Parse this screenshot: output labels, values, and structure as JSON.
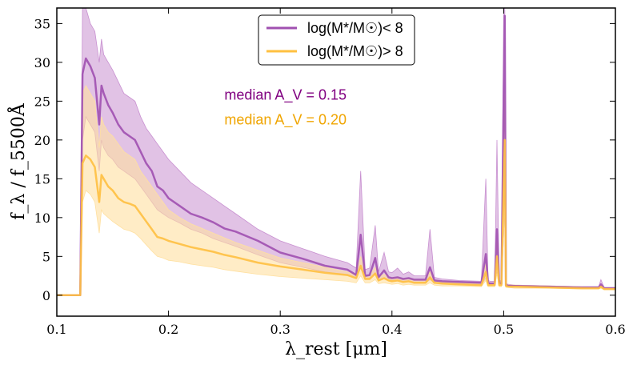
{
  "chart_data": {
    "type": "line",
    "xlabel": "λ_rest [μm]",
    "ylabel": "f_λ / f_5500Å",
    "xlim": [
      0.1,
      0.6
    ],
    "ylim": [
      -2.7,
      37
    ],
    "xticks": [
      0.1,
      0.2,
      0.3,
      0.4,
      0.5,
      0.6
    ],
    "xtick_labels": [
      "0.1",
      "0.2",
      "0.3",
      "0.4",
      "0.5",
      "0.6"
    ],
    "yticks": [
      0,
      5,
      10,
      15,
      20,
      25,
      30,
      35
    ],
    "ytick_labels": [
      "0",
      "5",
      "10",
      "15",
      "20",
      "25",
      "30",
      "35"
    ],
    "grid": false,
    "legend_position": "top-center",
    "annotations": [
      {
        "text": "median A_V = 0.15",
        "x": 0.25,
        "y": 25.2,
        "color": "#800080"
      },
      {
        "text": "median A_V = 0.20",
        "x": 0.25,
        "y": 22.0,
        "color": "#f0a500"
      }
    ],
    "series": [
      {
        "name": "log(M*/M☉)< 8",
        "color": "#a050b0",
        "band_color": "#c890d0",
        "x": [
          0.1,
          0.121,
          0.123,
          0.126,
          0.13,
          0.134,
          0.138,
          0.14,
          0.142,
          0.146,
          0.15,
          0.155,
          0.16,
          0.165,
          0.17,
          0.175,
          0.18,
          0.185,
          0.19,
          0.195,
          0.2,
          0.21,
          0.22,
          0.23,
          0.24,
          0.25,
          0.26,
          0.28,
          0.3,
          0.32,
          0.34,
          0.36,
          0.368,
          0.372,
          0.376,
          0.38,
          0.385,
          0.388,
          0.393,
          0.397,
          0.4,
          0.405,
          0.41,
          0.415,
          0.42,
          0.43,
          0.434,
          0.438,
          0.445,
          0.46,
          0.48,
          0.484,
          0.486,
          0.488,
          0.492,
          0.494,
          0.496,
          0.498,
          0.5,
          0.501,
          0.502,
          0.504,
          0.51,
          0.54,
          0.57,
          0.585,
          0.587,
          0.59,
          0.6
        ],
        "y": [
          0,
          0,
          28.5,
          30.5,
          29.5,
          28.0,
          22.0,
          27.0,
          26.0,
          24.5,
          23.5,
          22.0,
          21.0,
          20.5,
          20.0,
          18.5,
          17.0,
          16.0,
          14.0,
          13.5,
          12.5,
          11.5,
          10.5,
          10.0,
          9.4,
          8.6,
          8.2,
          7.0,
          5.5,
          4.7,
          3.8,
          3.3,
          2.6,
          7.8,
          2.5,
          2.6,
          4.8,
          2.3,
          3.2,
          2.3,
          2.2,
          2.3,
          2.1,
          2.2,
          2.0,
          2.0,
          3.6,
          1.9,
          1.8,
          1.7,
          1.6,
          5.3,
          1.6,
          1.5,
          1.5,
          8.5,
          1.6,
          1.5,
          25.5,
          36,
          1.3,
          1.2,
          1.2,
          1.1,
          1.0,
          1.0,
          1.4,
          0.9,
          0.9
        ],
        "band_upper": [
          0,
          0,
          37,
          37,
          35,
          34,
          30,
          33,
          31,
          30,
          29,
          27.5,
          26,
          25.5,
          25,
          23,
          21.5,
          20.5,
          19.5,
          18.5,
          17.5,
          16.0,
          14.5,
          13.5,
          12.5,
          11.5,
          10.5,
          8.5,
          7.0,
          6.0,
          5.0,
          4.2,
          3.5,
          16.0,
          3.3,
          3.5,
          9.0,
          3.0,
          5.5,
          3.0,
          2.9,
          3.5,
          2.7,
          3.0,
          2.5,
          2.5,
          8.5,
          2.3,
          2.1,
          1.9,
          1.8,
          15.0,
          1.9,
          1.8,
          1.8,
          20.0,
          1.9,
          1.8,
          37,
          37,
          1.5,
          1.4,
          1.3,
          1.2,
          1.1,
          1.1,
          2.0,
          1.0,
          1.0
        ],
        "band_lower": [
          0,
          0,
          20,
          23,
          22,
          21,
          16,
          20,
          19,
          18,
          17.5,
          16.5,
          16,
          15.5,
          15,
          14,
          13,
          12,
          11,
          10.5,
          10,
          9.3,
          8.5,
          8.0,
          7.3,
          6.8,
          6.3,
          5.2,
          4.2,
          3.6,
          3.0,
          2.6,
          2.2,
          3.5,
          2.1,
          2.1,
          2.8,
          1.9,
          2.2,
          1.9,
          1.8,
          1.9,
          1.7,
          1.8,
          1.6,
          1.6,
          2.0,
          1.6,
          1.5,
          1.4,
          1.3,
          2.2,
          1.3,
          1.3,
          1.3,
          3.0,
          1.3,
          1.3,
          8.0,
          12.0,
          1.2,
          1.1,
          1.1,
          1.0,
          0.9,
          0.9,
          1.1,
          0.8,
          0.8
        ]
      },
      {
        "name": "log(M*/M☉)> 8",
        "color": "#ffc040",
        "band_color": "#ffe0a0",
        "x": [
          0.1,
          0.121,
          0.123,
          0.126,
          0.13,
          0.134,
          0.138,
          0.14,
          0.142,
          0.146,
          0.15,
          0.155,
          0.16,
          0.165,
          0.17,
          0.175,
          0.18,
          0.185,
          0.19,
          0.195,
          0.2,
          0.21,
          0.22,
          0.23,
          0.24,
          0.25,
          0.26,
          0.28,
          0.3,
          0.32,
          0.34,
          0.36,
          0.368,
          0.372,
          0.376,
          0.38,
          0.385,
          0.388,
          0.393,
          0.397,
          0.4,
          0.405,
          0.41,
          0.415,
          0.42,
          0.43,
          0.434,
          0.438,
          0.445,
          0.46,
          0.48,
          0.484,
          0.486,
          0.488,
          0.492,
          0.494,
          0.496,
          0.498,
          0.5,
          0.501,
          0.502,
          0.504,
          0.51,
          0.54,
          0.57,
          0.585,
          0.587,
          0.59,
          0.6
        ],
        "y": [
          0,
          0,
          17.0,
          18.0,
          17.5,
          16.5,
          12.0,
          15.5,
          15.0,
          14.0,
          13.5,
          12.5,
          12.0,
          11.8,
          11.5,
          10.5,
          9.5,
          8.5,
          7.5,
          7.3,
          7.0,
          6.6,
          6.2,
          5.9,
          5.6,
          5.2,
          4.9,
          4.2,
          3.7,
          3.3,
          2.9,
          2.6,
          2.2,
          3.8,
          2.1,
          2.1,
          2.8,
          1.9,
          2.2,
          1.9,
          1.8,
          1.9,
          1.7,
          1.8,
          1.6,
          1.6,
          2.3,
          1.6,
          1.5,
          1.4,
          1.3,
          3.0,
          1.3,
          1.3,
          1.3,
          5.0,
          1.3,
          1.3,
          14.0,
          20.0,
          1.2,
          1.1,
          1.1,
          1.0,
          0.9,
          0.9,
          1.1,
          0.8,
          0.8
        ],
        "band_upper": [
          0,
          0,
          26,
          27,
          26,
          25,
          19,
          23,
          22,
          21,
          20.5,
          19.5,
          18.5,
          18,
          17.5,
          16,
          15,
          14,
          13,
          12,
          11,
          10,
          9.2,
          8.6,
          8.0,
          7.4,
          6.8,
          5.8,
          4.8,
          4.2,
          3.6,
          3.0,
          2.6,
          5.0,
          2.5,
          2.5,
          3.6,
          2.3,
          2.7,
          2.3,
          2.2,
          2.3,
          2.1,
          2.2,
          2.0,
          2.0,
          3.0,
          1.9,
          1.8,
          1.7,
          1.6,
          4.0,
          1.6,
          1.6,
          1.6,
          7.0,
          1.6,
          1.6,
          18,
          26,
          1.4,
          1.3,
          1.3,
          1.2,
          1.1,
          1.0,
          1.3,
          0.9,
          0.9
        ],
        "band_lower": [
          0,
          0,
          12,
          13.5,
          13,
          12,
          8,
          11,
          10.5,
          10,
          9.5,
          9,
          8.5,
          8.3,
          8,
          7.3,
          6.5,
          5.7,
          5.0,
          4.8,
          4.5,
          4.3,
          4.0,
          3.8,
          3.6,
          3.3,
          3.1,
          2.7,
          2.4,
          2.2,
          2.0,
          1.8,
          1.6,
          2.5,
          1.6,
          1.6,
          2.0,
          1.5,
          1.6,
          1.5,
          1.4,
          1.5,
          1.3,
          1.4,
          1.3,
          1.3,
          1.6,
          1.3,
          1.2,
          1.2,
          1.1,
          1.9,
          1.1,
          1.1,
          1.1,
          2.8,
          1.1,
          1.1,
          8.0,
          12.0,
          1.0,
          1.0,
          0.9,
          0.9,
          0.8,
          0.8,
          0.9,
          0.7,
          0.7
        ]
      }
    ]
  }
}
